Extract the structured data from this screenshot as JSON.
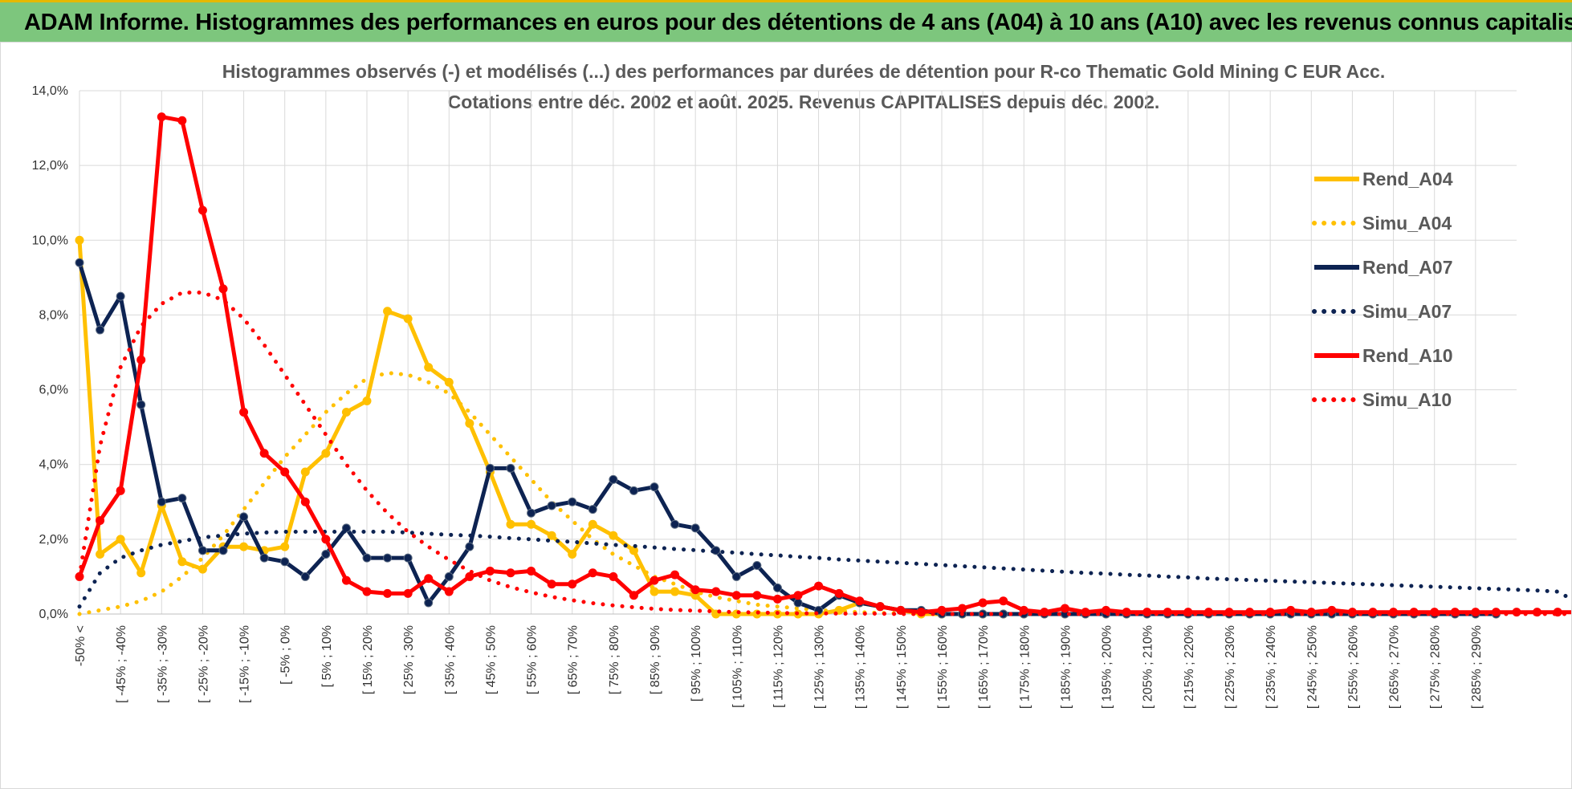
{
  "banner": {
    "title": "ADAM Informe. Histogrammes des performances en euros pour des détentions de 4 ans (A04) à 10 ans (A10) avec les revenus connus capitalisés"
  },
  "colors": {
    "banner_bg": "#7dc67d",
    "a04": "#ffc000",
    "a07": "#0d2352",
    "a10": "#ff0000",
    "grid": "#d9d9d9"
  },
  "chart_data": {
    "type": "line",
    "title": "Histogrammes observés (-) et modélisés (...) des performances par durées de détention pour R-co Thematic Gold Mining C EUR Acc.",
    "subtitle": "Cotations entre déc. 2002 et août. 2025. Revenus CAPITALISES depuis déc. 2002.",
    "ylim": [
      0,
      14
    ],
    "yticks": [
      "0,0%",
      "2,0%",
      "4,0%",
      "6,0%",
      "8,0%",
      "10,0%",
      "12,0%",
      "14,0%"
    ],
    "x_labels": [
      "-50% <",
      "[ -45% ; -40%",
      "[ -35% ; -30%",
      "[ -25% ; -20%",
      "[ -15% ; -10%",
      "[ -5% ; 0%",
      "[ 5% ; 10%",
      "[ 15% ; 20%",
      "[ 25% ; 30%",
      "[ 35% ; 40%",
      "[ 45% ; 50%",
      "[ 55% ; 60%",
      "[ 65% ; 70%",
      "[ 75% ; 80%",
      "[ 85% ; 90%",
      "[ 95% ; 100%",
      "[ 105% ; 110%",
      "[ 115% ; 120%",
      "[ 125% ; 130%",
      "[ 135% ; 140%",
      "[ 145% ; 150%",
      "[ 155% ; 160%",
      "[ 165% ; 170%",
      "[ 175% ; 180%",
      "[ 185% ; 190%",
      "[ 195% ; 200%",
      "[ 205% ; 210%",
      "[ 215% ; 220%",
      "[ 225% ; 230%",
      "[ 235% ; 240%",
      "[ 245% ; 250%",
      "[ 255% ; 260%",
      "[ 265% ; 270%",
      "[ 275% ; 280%",
      "[ 285% ; 290%"
    ],
    "legend_position": "right",
    "series": [
      {
        "name": "Rend_A04",
        "style": "solid",
        "color": "#ffc000",
        "values": [
          10.0,
          1.6,
          2.0,
          1.1,
          2.9,
          1.4,
          1.2,
          1.8,
          1.8,
          1.7,
          1.8,
          3.8,
          4.3,
          5.4,
          5.7,
          8.1,
          7.9,
          6.6,
          6.2,
          5.1,
          3.8,
          2.4,
          2.4,
          2.1,
          1.6,
          2.4,
          2.1,
          1.7,
          0.6,
          0.6,
          0.5,
          0.0,
          0.0,
          0.0,
          0.0,
          0.0,
          0.0,
          0.1,
          0.3,
          0.2,
          0.1,
          0.0,
          0.0,
          0.0,
          0.0,
          0.0,
          0.0,
          0.0,
          0.0,
          0.0,
          0.0,
          0.0,
          0.0,
          0.0,
          0.0,
          0.0,
          0.0,
          0.0,
          0.0,
          0.0,
          0.0,
          0.0,
          0.0,
          0.0,
          0.0,
          0.0,
          0.0,
          0.0,
          0.0,
          0.0
        ]
      },
      {
        "name": "Simu_A04",
        "style": "dotted",
        "color": "#ffc000",
        "values": [
          0.0,
          0.1,
          0.2,
          0.35,
          0.6,
          1.0,
          1.5,
          2.1,
          2.8,
          3.5,
          4.2,
          4.8,
          5.4,
          5.9,
          6.3,
          6.45,
          6.4,
          6.2,
          5.9,
          5.4,
          4.8,
          4.2,
          3.6,
          3.0,
          2.5,
          2.0,
          1.6,
          1.3,
          1.0,
          0.8,
          0.6,
          0.45,
          0.35,
          0.25,
          0.2,
          0.15,
          0.1,
          0.08,
          0.05,
          0.03,
          0.02,
          0.0,
          0.0,
          0.0,
          0.0,
          0.0,
          0.0,
          0.0,
          0.0,
          0.0,
          0.0,
          0.0,
          0.0,
          0.0,
          0.0,
          0.0,
          0.0,
          0.0,
          0.0,
          0.0,
          0.0,
          0.0,
          0.0,
          0.0,
          0.0,
          0.0,
          0.0,
          0.0,
          0.0,
          0.0
        ]
      },
      {
        "name": "Rend_A07",
        "style": "solid",
        "color": "#0d2352",
        "values": [
          9.4,
          7.6,
          8.5,
          5.6,
          3.0,
          3.1,
          1.7,
          1.7,
          2.6,
          1.5,
          1.4,
          1.0,
          1.6,
          2.3,
          1.5,
          1.5,
          1.5,
          0.3,
          1.0,
          1.8,
          3.9,
          3.9,
          2.7,
          2.9,
          3.0,
          2.8,
          3.6,
          3.3,
          3.4,
          2.4,
          2.3,
          1.7,
          1.0,
          1.3,
          0.7,
          0.3,
          0.1,
          0.5,
          0.3,
          0.2,
          0.1,
          0.1,
          0.0,
          0.0,
          0.0,
          0.0,
          0.0,
          0.0,
          0.0,
          0.0,
          0.0,
          0.0,
          0.0,
          0.0,
          0.0,
          0.0,
          0.0,
          0.0,
          0.0,
          0.0,
          0.0,
          0.0,
          0.0,
          0.0,
          0.0,
          0.0,
          0.0,
          0.0,
          0.0,
          0.0
        ]
      },
      {
        "name": "Simu_A07",
        "style": "dotted",
        "color": "#0d2352",
        "values": [
          0.2,
          1.1,
          1.5,
          1.7,
          1.85,
          1.95,
          2.05,
          2.1,
          2.15,
          2.18,
          2.2,
          2.2,
          2.2,
          2.2,
          2.2,
          2.2,
          2.18,
          2.15,
          2.12,
          2.1,
          2.07,
          2.03,
          2.0,
          1.96,
          1.93,
          1.89,
          1.85,
          1.82,
          1.78,
          1.74,
          1.71,
          1.67,
          1.64,
          1.6,
          1.57,
          1.53,
          1.5,
          1.46,
          1.43,
          1.4,
          1.37,
          1.34,
          1.31,
          1.28,
          1.25,
          1.22,
          1.19,
          1.16,
          1.13,
          1.1,
          1.08,
          1.05,
          1.03,
          1.0,
          0.98,
          0.95,
          0.93,
          0.91,
          0.89,
          0.87,
          0.85,
          0.83,
          0.81,
          0.79,
          0.77,
          0.75,
          0.73,
          0.71,
          0.69,
          0.67,
          0.65,
          0.63,
          0.6,
          0.3
        ]
      },
      {
        "name": "Rend_A10",
        "style": "solid",
        "color": "#ff0000",
        "values": [
          1.0,
          2.5,
          3.3,
          6.8,
          13.3,
          13.2,
          10.8,
          8.7,
          5.4,
          4.3,
          3.8,
          3.0,
          2.0,
          0.9,
          0.6,
          0.55,
          0.55,
          0.95,
          0.6,
          1.0,
          1.15,
          1.1,
          1.15,
          0.8,
          0.8,
          1.1,
          1.0,
          0.5,
          0.9,
          1.05,
          0.65,
          0.6,
          0.5,
          0.5,
          0.4,
          0.5,
          0.75,
          0.55,
          0.35,
          0.2,
          0.1,
          0.05,
          0.1,
          0.15,
          0.3,
          0.35,
          0.1,
          0.05,
          0.15,
          0.05,
          0.1,
          0.05,
          0.05,
          0.05,
          0.05,
          0.05,
          0.05,
          0.05,
          0.05,
          0.1,
          0.05,
          0.1,
          0.05,
          0.05,
          0.05,
          0.05,
          0.05,
          0.05,
          0.05,
          0.05,
          0.05,
          0.05,
          0.05,
          0.05
        ]
      },
      {
        "name": "Simu_A10",
        "style": "dotted",
        "color": "#ff0000",
        "values": [
          1.0,
          4.5,
          6.6,
          7.7,
          8.3,
          8.6,
          8.6,
          8.4,
          7.9,
          7.2,
          6.4,
          5.6,
          4.8,
          4.0,
          3.3,
          2.7,
          2.2,
          1.8,
          1.45,
          1.15,
          0.9,
          0.72,
          0.58,
          0.46,
          0.37,
          0.29,
          0.23,
          0.18,
          0.14,
          0.11,
          0.09,
          0.07,
          0.05,
          0.04,
          0.03,
          0.02,
          0.02,
          0.01,
          0.01,
          0.01,
          0.0,
          0.0,
          0.0,
          0.0,
          0.0,
          0.0,
          0.0,
          0.0,
          0.0,
          0.0,
          0.0,
          0.0,
          0.0,
          0.0,
          0.0,
          0.0,
          0.0,
          0.0,
          0.0,
          0.0,
          0.0,
          0.0,
          0.0,
          0.0,
          0.0,
          0.0,
          0.0,
          0.0,
          0.0,
          0.0,
          0.0,
          0.0,
          0.0,
          0.0
        ]
      }
    ]
  }
}
